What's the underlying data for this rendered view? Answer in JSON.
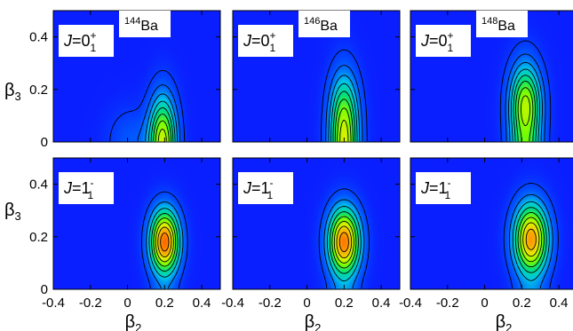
{
  "chart_data": {
    "type": "heatmap",
    "xlabel": "β2",
    "ylabel": "β3",
    "xlim": [
      -0.4,
      0.5
    ],
    "ylim": [
      0,
      0.5
    ],
    "xticks": [
      "-0.4",
      "-0.2",
      "0",
      "0.2",
      "0.4"
    ],
    "yticks": [
      "0",
      "0.2",
      "0.4"
    ],
    "colorscale": [
      "#0a1fff",
      "#0060ff",
      "#00c8e6",
      "#00e07a",
      "#7aff00",
      "#e6f000",
      "#ff9a00",
      "#ff5000"
    ],
    "panels": [
      {
        "isotope": "144Ba",
        "nucleus_mass": "144",
        "nucleus_symbol": "Ba",
        "state_J": "J",
        "state_value": "0",
        "state_sup": "+",
        "state_sub": "1",
        "row": 0,
        "col": 0,
        "peak_beta2": 0.19,
        "peak_beta3": 0.04,
        "width_beta2": 0.052,
        "width_beta3": 0.115,
        "peak_intensity": 0.68,
        "tail": true
      },
      {
        "isotope": "146Ba",
        "nucleus_mass": "146",
        "nucleus_symbol": "Ba",
        "state_J": "J",
        "state_value": "0",
        "state_sup": "+",
        "state_sub": "1",
        "row": 0,
        "col": 1,
        "peak_beta2": 0.2,
        "peak_beta3": 0.1,
        "width_beta2": 0.055,
        "width_beta3": 0.12,
        "peak_intensity": 0.7,
        "tail": false
      },
      {
        "isotope": "148Ba",
        "nucleus_mass": "148",
        "nucleus_symbol": "Ba",
        "state_J": "J",
        "state_value": "0",
        "state_sup": "+",
        "state_sub": "1",
        "row": 0,
        "col": 2,
        "peak_beta2": 0.22,
        "peak_beta3": 0.14,
        "width_beta2": 0.06,
        "width_beta3": 0.11,
        "peak_intensity": 0.66,
        "tail": false
      },
      {
        "isotope": "144Ba",
        "nucleus_mass": "144",
        "nucleus_symbol": "Ba",
        "state_J": "J",
        "state_value": "1",
        "state_sup": "-",
        "state_sub": "1",
        "row": 1,
        "col": 0,
        "peak_beta2": 0.2,
        "peak_beta3": 0.18,
        "width_beta2": 0.055,
        "width_beta3": 0.085,
        "peak_intensity": 0.95,
        "tail": false
      },
      {
        "isotope": "146Ba",
        "nucleus_mass": "146",
        "nucleus_symbol": "Ba",
        "state_J": "J",
        "state_value": "1",
        "state_sup": "-",
        "state_sub": "1",
        "row": 1,
        "col": 1,
        "peak_beta2": 0.2,
        "peak_beta3": 0.18,
        "width_beta2": 0.06,
        "width_beta3": 0.09,
        "peak_intensity": 0.92,
        "tail": false
      },
      {
        "isotope": "148Ba",
        "nucleus_mass": "148",
        "nucleus_symbol": "Ba",
        "state_J": "J",
        "state_value": "1",
        "state_sup": "-",
        "state_sub": "1",
        "row": 1,
        "col": 2,
        "peak_beta2": 0.25,
        "peak_beta3": 0.19,
        "width_beta2": 0.065,
        "width_beta3": 0.095,
        "peak_intensity": 0.86,
        "tail": false
      }
    ]
  }
}
